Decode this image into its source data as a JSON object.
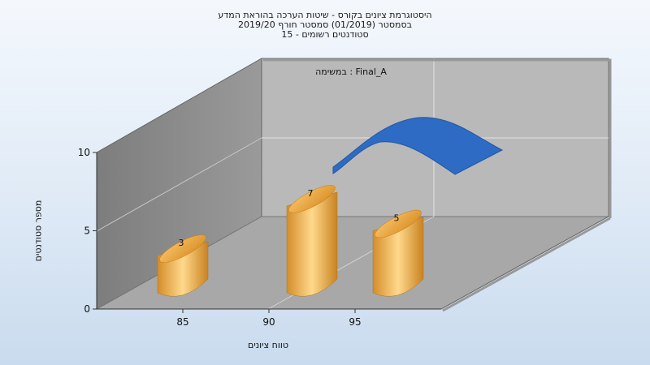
{
  "chart_data": {
    "type": "bar",
    "title_lines": [
      "היסטוגרמת ציונים בקורס - שיטות הערכה בהוראת המדע",
      "בסמסטר  (01/2019)  סמסטר חורף 2019/20",
      "סטודנטים רשומים - 15"
    ],
    "annotation": "במשימה : Final_A",
    "categories": [
      "85",
      "90",
      "95"
    ],
    "bars": [
      {
        "x": 85,
        "value": 3
      },
      {
        "x": 92.5,
        "value": 7
      },
      {
        "x": 97.5,
        "value": 5
      }
    ],
    "data_labels": [
      "3",
      "7",
      "5"
    ],
    "xlabel": "טווח ציונים",
    "ylabel": "מספר סטודנטים",
    "yticks": [
      "0",
      "5",
      "10"
    ],
    "ylim": [
      0,
      10
    ],
    "xlim": [
      80,
      100
    ],
    "grid": true,
    "colors": {
      "bar_light": "#ffd98c",
      "bar_mid": "#f0a93c",
      "bar_dark": "#c98220",
      "curve": "#2e6bc4",
      "back_wall": "#b8b8b8",
      "side_wall": "#8a8a8a",
      "floor": "#a6a6a6"
    }
  }
}
